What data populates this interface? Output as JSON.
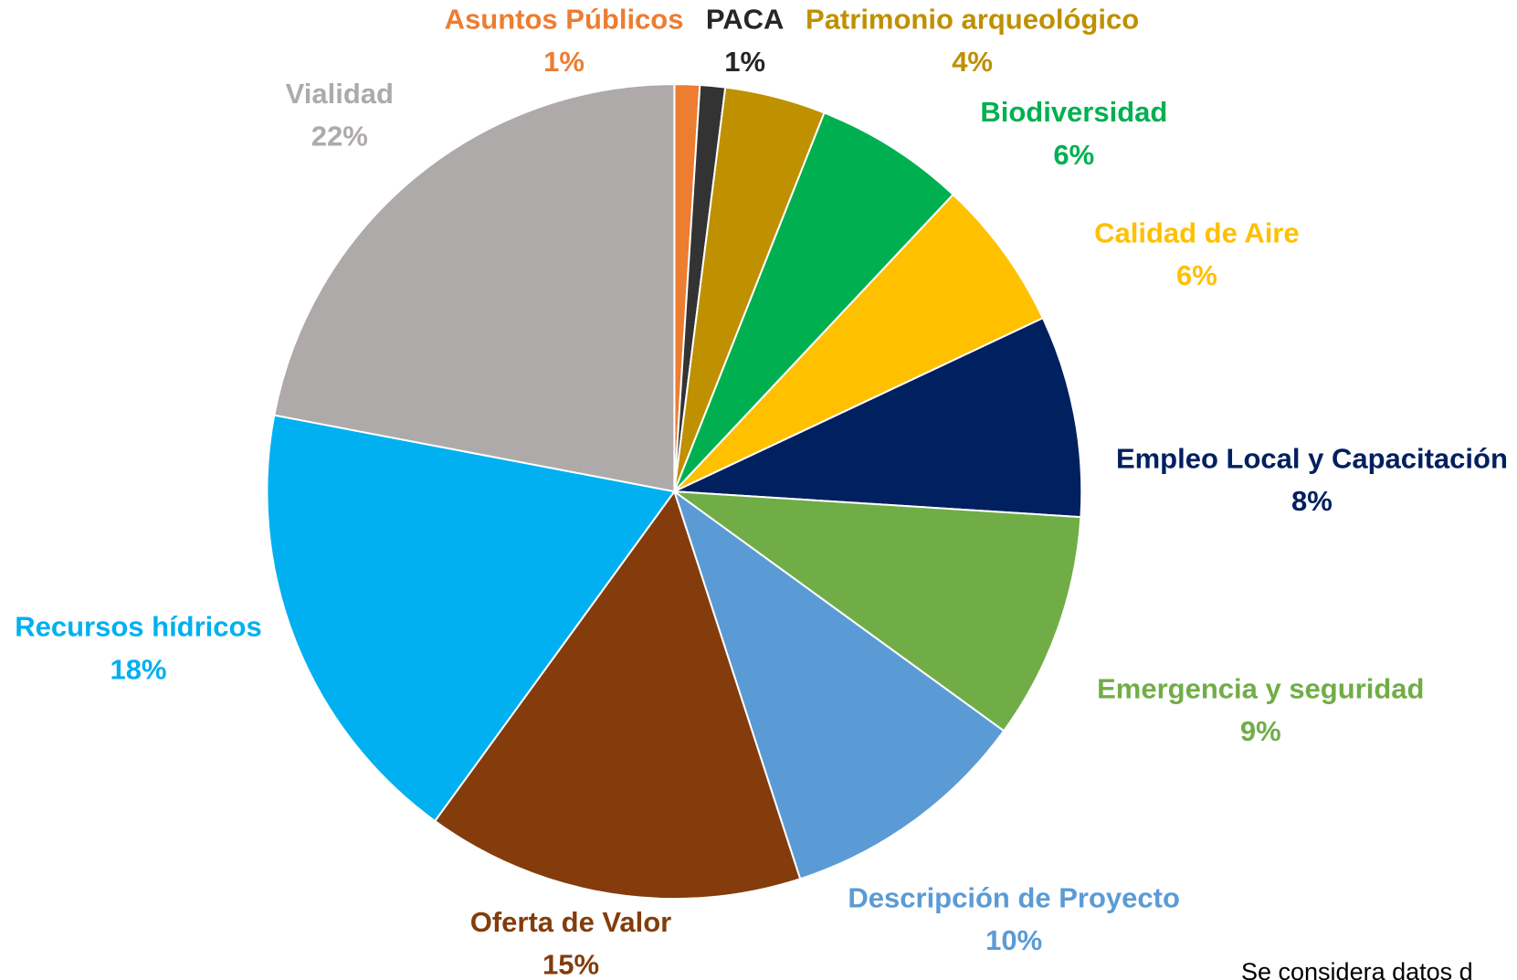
{
  "chart_data": {
    "type": "pie",
    "categories": [
      "Asuntos Públicos",
      "PACA",
      "Patrimonio arqueológico",
      "Biodiversidad",
      "Calidad de Aire",
      "Empleo Local y Capacitación",
      "Emergencia y seguridad",
      "Descripción de Proyecto",
      "Oferta de Valor",
      "Recursos hídricos",
      "Vialidad"
    ],
    "values": [
      1,
      1,
      4,
      6,
      6,
      8,
      9,
      10,
      15,
      18,
      22
    ],
    "value_labels": [
      "1%",
      "1%",
      "4%",
      "6%",
      "6%",
      "8%",
      "9%",
      "10%",
      "15%",
      "18%",
      "22%"
    ],
    "colors": [
      "#ED7D31",
      "#333333",
      "#BF9000",
      "#00B050",
      "#FFC000",
      "#002060",
      "#70AD47",
      "#5B9BD5",
      "#843C0C",
      "#00B0F0",
      "#AEAAAA"
    ],
    "annotation": "Se considera datos d"
  }
}
